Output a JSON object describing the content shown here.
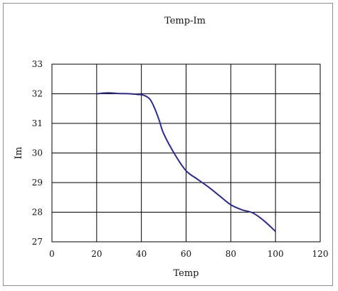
{
  "chart_data": {
    "type": "line",
    "title": "Temp-Im",
    "xlabel": "Temp",
    "ylabel": "Im",
    "xlim": [
      0,
      120
    ],
    "ylim": [
      27,
      33
    ],
    "x_ticks": [
      0,
      20,
      40,
      60,
      80,
      100,
      120
    ],
    "y_ticks": [
      27,
      28,
      29,
      30,
      31,
      32,
      33
    ],
    "grid": true,
    "legend": "none",
    "series": [
      {
        "color": "#2b2b8f",
        "x": [
          20,
          25,
          30,
          35,
          38,
          40,
          42,
          44,
          46,
          48,
          50,
          55,
          60,
          65,
          70,
          75,
          80,
          85,
          90,
          95,
          100
        ],
        "y": [
          32.0,
          32.03,
          32.01,
          32.0,
          31.98,
          31.97,
          31.92,
          31.8,
          31.5,
          31.1,
          30.65,
          29.95,
          29.4,
          29.12,
          28.85,
          28.55,
          28.25,
          28.08,
          27.97,
          27.7,
          27.35
        ]
      }
    ]
  }
}
